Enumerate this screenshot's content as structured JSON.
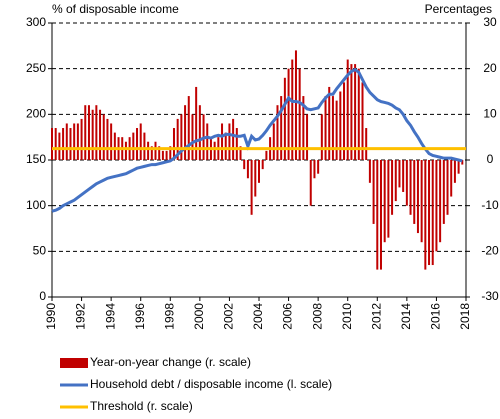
{
  "chart_data": {
    "type": "combo",
    "y_label": "% of disposable income",
    "y2_label": "Percentages",
    "xlim": [
      1990,
      2018
    ],
    "xticks": [
      1990,
      1992,
      1994,
      1996,
      1998,
      2000,
      2002,
      2004,
      2006,
      2008,
      2010,
      2012,
      2014,
      2016,
      2018
    ],
    "ylim": [
      0,
      300
    ],
    "yticks": [
      0,
      50,
      100,
      150,
      200,
      250,
      300
    ],
    "y2lim": [
      -30,
      30
    ],
    "y2ticks": [
      -30,
      -20,
      -10,
      0,
      10,
      20,
      30
    ],
    "grid": true,
    "x": [
      1990,
      1990.25,
      1990.5,
      1990.75,
      1991,
      1991.25,
      1991.5,
      1991.75,
      1992,
      1992.25,
      1992.5,
      1992.75,
      1993,
      1993.25,
      1993.5,
      1993.75,
      1994,
      1994.25,
      1994.5,
      1994.75,
      1995,
      1995.25,
      1995.5,
      1995.75,
      1996,
      1996.25,
      1996.5,
      1996.75,
      1997,
      1997.25,
      1997.5,
      1997.75,
      1998,
      1998.25,
      1998.5,
      1998.75,
      1999,
      1999.25,
      1999.5,
      1999.75,
      2000,
      2000.25,
      2000.5,
      2000.75,
      2001,
      2001.25,
      2001.5,
      2001.75,
      2002,
      2002.25,
      2002.5,
      2002.75,
      2003,
      2003.25,
      2003.5,
      2003.75,
      2004,
      2004.25,
      2004.5,
      2004.75,
      2005,
      2005.25,
      2005.5,
      2005.75,
      2006,
      2006.25,
      2006.5,
      2006.75,
      2007,
      2007.25,
      2007.5,
      2007.75,
      2008,
      2008.25,
      2008.5,
      2008.75,
      2009,
      2009.25,
      2009.5,
      2009.75,
      2010,
      2010.25,
      2010.5,
      2010.75,
      2011,
      2011.25,
      2011.5,
      2011.75,
      2012,
      2012.25,
      2012.5,
      2012.75,
      2013,
      2013.25,
      2013.5,
      2013.75,
      2014,
      2014.25,
      2014.5,
      2014.75,
      2015,
      2015.25,
      2015.5,
      2015.75,
      2016,
      2016.25,
      2016.5,
      2016.75,
      2017,
      2017.25,
      2017.5,
      2017.75
    ],
    "series": [
      {
        "name": "Year-on-year change (r. scale)",
        "type": "bar",
        "axis": "y2",
        "color": "#c00000",
        "values": [
          7,
          7,
          6,
          7,
          8,
          7,
          8,
          8,
          9,
          12,
          12,
          11,
          12,
          11,
          10,
          9,
          8,
          6,
          5,
          5,
          4,
          5,
          6,
          7,
          8,
          6,
          4,
          3,
          4,
          3,
          2,
          2,
          3,
          7,
          9,
          10,
          12,
          14,
          10,
          16,
          12,
          10,
          8,
          5,
          4,
          5,
          8,
          6,
          8,
          9,
          7,
          3,
          -2,
          -4,
          -12,
          -8,
          -5,
          -2,
          2,
          5,
          8,
          12,
          14,
          18,
          20,
          22,
          24,
          20,
          14,
          10,
          -10,
          -4,
          -3,
          10,
          14,
          16,
          14,
          13,
          15,
          17,
          22,
          21,
          21,
          20,
          17,
          7,
          -5,
          -14,
          -24,
          -24,
          -18,
          -17,
          -12,
          -9,
          -6,
          -7,
          -10,
          -12,
          -14,
          -16,
          -18,
          -24,
          -23,
          -23,
          -20,
          -18,
          -14,
          -12,
          -8,
          -5,
          -3,
          -1
        ]
      },
      {
        "name": "Household debt / disposable income (l. scale)",
        "type": "line",
        "axis": "y",
        "color": "#4472c4",
        "values": [
          94,
          95,
          97,
          100,
          102,
          104,
          106,
          109,
          112,
          115,
          118,
          121,
          124,
          126,
          128,
          130,
          131,
          132,
          133,
          134,
          135,
          137,
          139,
          141,
          142,
          143,
          144,
          145,
          145,
          146,
          147,
          148,
          149,
          152,
          156,
          160,
          163,
          166,
          169,
          171,
          172,
          174,
          175,
          174,
          176,
          177,
          176,
          178,
          178,
          177,
          176,
          176,
          177,
          165,
          176,
          172,
          173,
          177,
          182,
          188,
          193,
          198,
          204,
          211,
          218,
          214,
          214,
          213,
          210,
          206,
          205,
          206,
          207,
          213,
          218,
          222,
          222,
          228,
          233,
          238,
          243,
          247,
          249,
          246,
          238,
          230,
          224,
          220,
          216,
          214,
          213,
          212,
          210,
          207,
          205,
          200,
          193,
          188,
          181,
          175,
          168,
          162,
          157,
          155,
          154,
          153,
          152,
          152,
          152,
          151,
          150,
          149
        ]
      },
      {
        "name": "Threshold (r. scale)",
        "type": "hline",
        "axis": "y2",
        "color": "#ffc000",
        "value": 2.5
      }
    ]
  }
}
